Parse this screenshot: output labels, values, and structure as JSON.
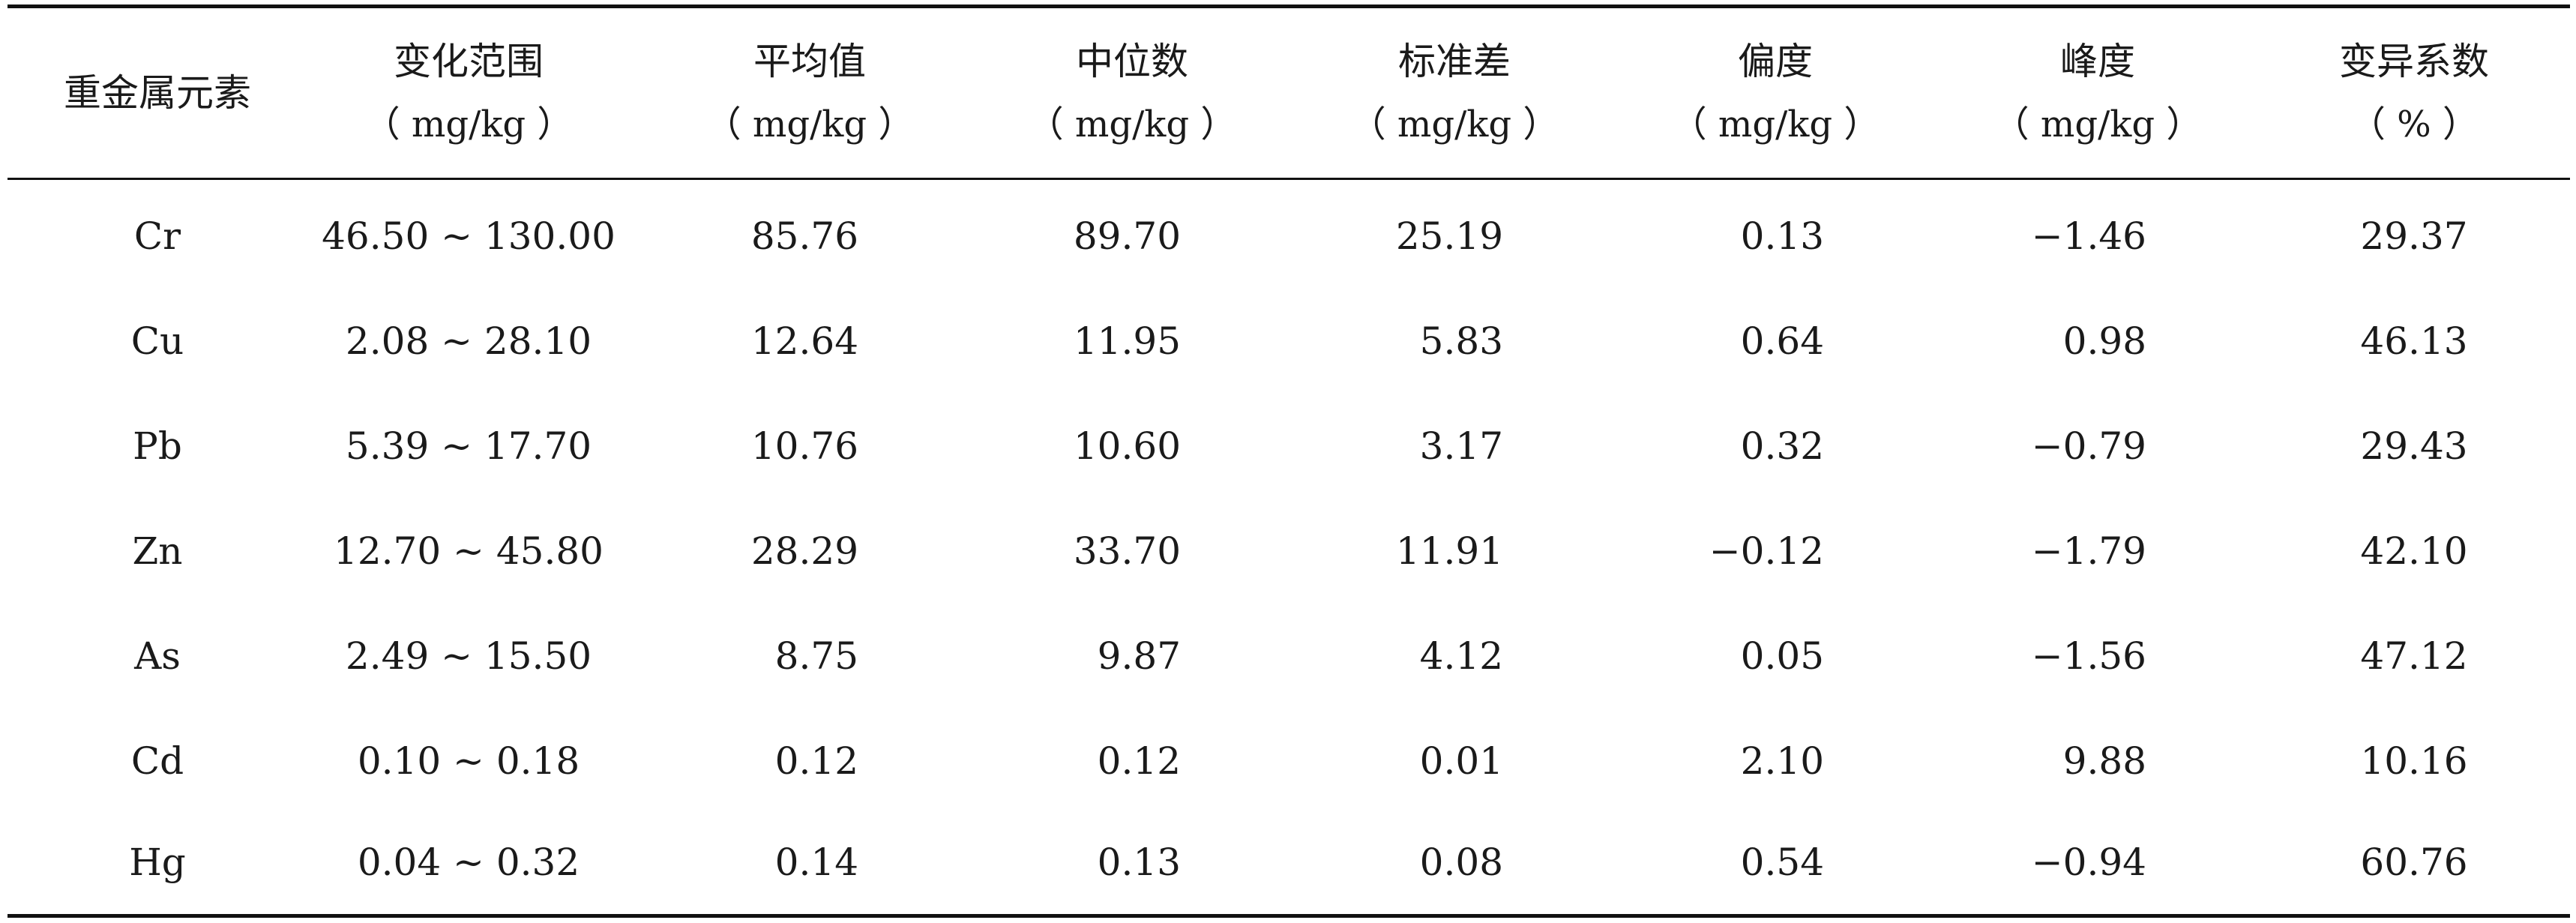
{
  "table": {
    "headers": [
      {
        "label": "重金属元素",
        "unit": ""
      },
      {
        "label": "变化范围",
        "unit": "（ mg/kg ）"
      },
      {
        "label": "平均值",
        "unit": "（ mg/kg ）"
      },
      {
        "label": "中位数",
        "unit": "（ mg/kg ）"
      },
      {
        "label": "标准差",
        "unit": "（ mg/kg ）"
      },
      {
        "label": "偏度",
        "unit": "（ mg/kg ）"
      },
      {
        "label": "峰度",
        "unit": "（ mg/kg ）"
      },
      {
        "label": "变异系数",
        "unit": "（ % ）"
      }
    ],
    "rows": [
      {
        "element": "Cr",
        "range": "46.50 ~ 130.00",
        "mean": "85.76",
        "median": "89.70",
        "sd": "25.19",
        "skewness": "0.13",
        "kurtosis": "−1.46",
        "cv": "29.37"
      },
      {
        "element": "Cu",
        "range": "2.08 ~ 28.10",
        "mean": "12.64",
        "median": "11.95",
        "sd": "5.83",
        "skewness": "0.64",
        "kurtosis": "0.98",
        "cv": "46.13"
      },
      {
        "element": "Pb",
        "range": "5.39 ~ 17.70",
        "mean": "10.76",
        "median": "10.60",
        "sd": "3.17",
        "skewness": "0.32",
        "kurtosis": "−0.79",
        "cv": "29.43"
      },
      {
        "element": "Zn",
        "range": "12.70 ~ 45.80",
        "mean": "28.29",
        "median": "33.70",
        "sd": "11.91",
        "skewness": "−0.12",
        "kurtosis": "−1.79",
        "cv": "42.10"
      },
      {
        "element": "As",
        "range": "2.49 ~ 15.50",
        "mean": "8.75",
        "median": "9.87",
        "sd": "4.12",
        "skewness": "0.05",
        "kurtosis": "−1.56",
        "cv": "47.12"
      },
      {
        "element": "Cd",
        "range": "0.10 ~ 0.18",
        "mean": "0.12",
        "median": "0.12",
        "sd": "0.01",
        "skewness": "2.10",
        "kurtosis": "9.88",
        "cv": "10.16"
      },
      {
        "element": "Hg",
        "range": "0.04 ~ 0.32",
        "mean": "0.14",
        "median": "0.13",
        "sd": "0.08",
        "skewness": "0.54",
        "kurtosis": "−0.94",
        "cv": "60.76"
      }
    ]
  }
}
